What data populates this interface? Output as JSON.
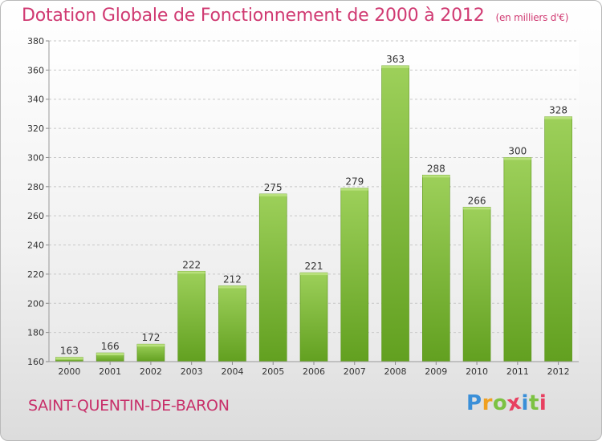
{
  "header": {
    "title": "Dotation Globale de Fonctionnement de 2000 à 2012",
    "subtitle": "(en milliers d'€)"
  },
  "footer": {
    "commune": "SAINT-QUENTIN-DE-BARON",
    "brand": "Proxiti",
    "brand_colors": [
      "#3a8fd8",
      "#f0a020",
      "#7cc242",
      "#e84060",
      "#3a8fd8",
      "#7cc242",
      "#e84060"
    ]
  },
  "colors": {
    "title": "#d03a72",
    "bar_top": "#9dd05a",
    "bar_bottom": "#62a020",
    "grid": "#c8c8c8"
  },
  "chart_data": {
    "type": "bar",
    "categories": [
      "2000",
      "2001",
      "2002",
      "2003",
      "2004",
      "2005",
      "2006",
      "2007",
      "2008",
      "2009",
      "2010",
      "2011",
      "2012"
    ],
    "values": [
      163,
      166,
      172,
      222,
      212,
      275,
      221,
      279,
      363,
      288,
      266,
      300,
      328
    ],
    "ylim": [
      160,
      380
    ],
    "yticks": [
      160,
      180,
      200,
      220,
      240,
      260,
      280,
      300,
      320,
      340,
      360,
      380
    ],
    "grid": true,
    "xlabel": "",
    "ylabel": ""
  }
}
